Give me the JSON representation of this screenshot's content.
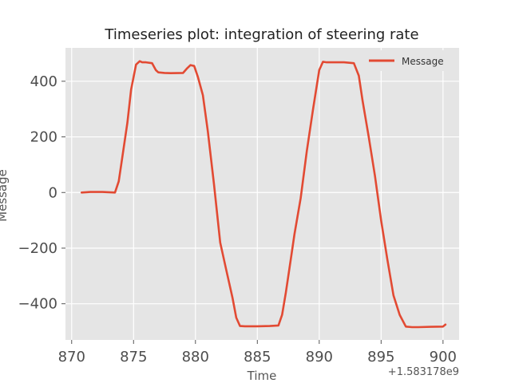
{
  "chart_data": {
    "type": "line",
    "title": "Timeseries plot: integration of steering rate",
    "xlabel": "Time",
    "ylabel": "Message",
    "x_offset_label": "+1.583178e9",
    "xlim": [
      869.5,
      901.3
    ],
    "ylim": [
      -530,
      520
    ],
    "xticks": [
      870,
      875,
      880,
      885,
      890,
      895,
      900
    ],
    "xtick_labels": [
      "870",
      "875",
      "880",
      "885",
      "890",
      "895",
      "900"
    ],
    "yticks": [
      -400,
      -200,
      0,
      200,
      400
    ],
    "ytick_labels": [
      "−400",
      "−200",
      "0",
      "200",
      "400"
    ],
    "grid": true,
    "legend_position": "top-right",
    "series": [
      {
        "name": "Message",
        "color": "#E24A33",
        "x": [
          870.8,
          871.5,
          872.5,
          873.5,
          873.8,
          874.0,
          874.5,
          874.8,
          875.2,
          875.5,
          875.7,
          876.0,
          876.5,
          876.8,
          877.0,
          877.5,
          878.0,
          879.0,
          879.3,
          879.6,
          879.9,
          880.2,
          880.6,
          881.0,
          881.5,
          882.0,
          882.5,
          883.0,
          883.3,
          883.6,
          884.0,
          885.0,
          886.0,
          886.7,
          887.0,
          887.3,
          887.7,
          888.0,
          888.5,
          889.0,
          889.5,
          890.0,
          890.3,
          890.6,
          891.0,
          892.0,
          892.8,
          893.2,
          893.5,
          894.0,
          894.5,
          895.0,
          895.5,
          896.0,
          896.5,
          897.0,
          897.5,
          898.0,
          899.0,
          900.0,
          900.2
        ],
        "y": [
          0,
          2,
          2,
          0,
          40,
          100,
          250,
          370,
          460,
          472,
          468,
          468,
          465,
          440,
          432,
          430,
          429,
          430,
          445,
          458,
          455,
          415,
          350,
          220,
          30,
          -180,
          -280,
          -380,
          -450,
          -480,
          -481,
          -481,
          -480,
          -478,
          -440,
          -360,
          -240,
          -150,
          -20,
          150,
          300,
          440,
          470,
          468,
          468,
          468,
          465,
          420,
          330,
          200,
          60,
          -100,
          -240,
          -370,
          -440,
          -482,
          -484,
          -484,
          -483,
          -482,
          -475
        ]
      }
    ]
  }
}
